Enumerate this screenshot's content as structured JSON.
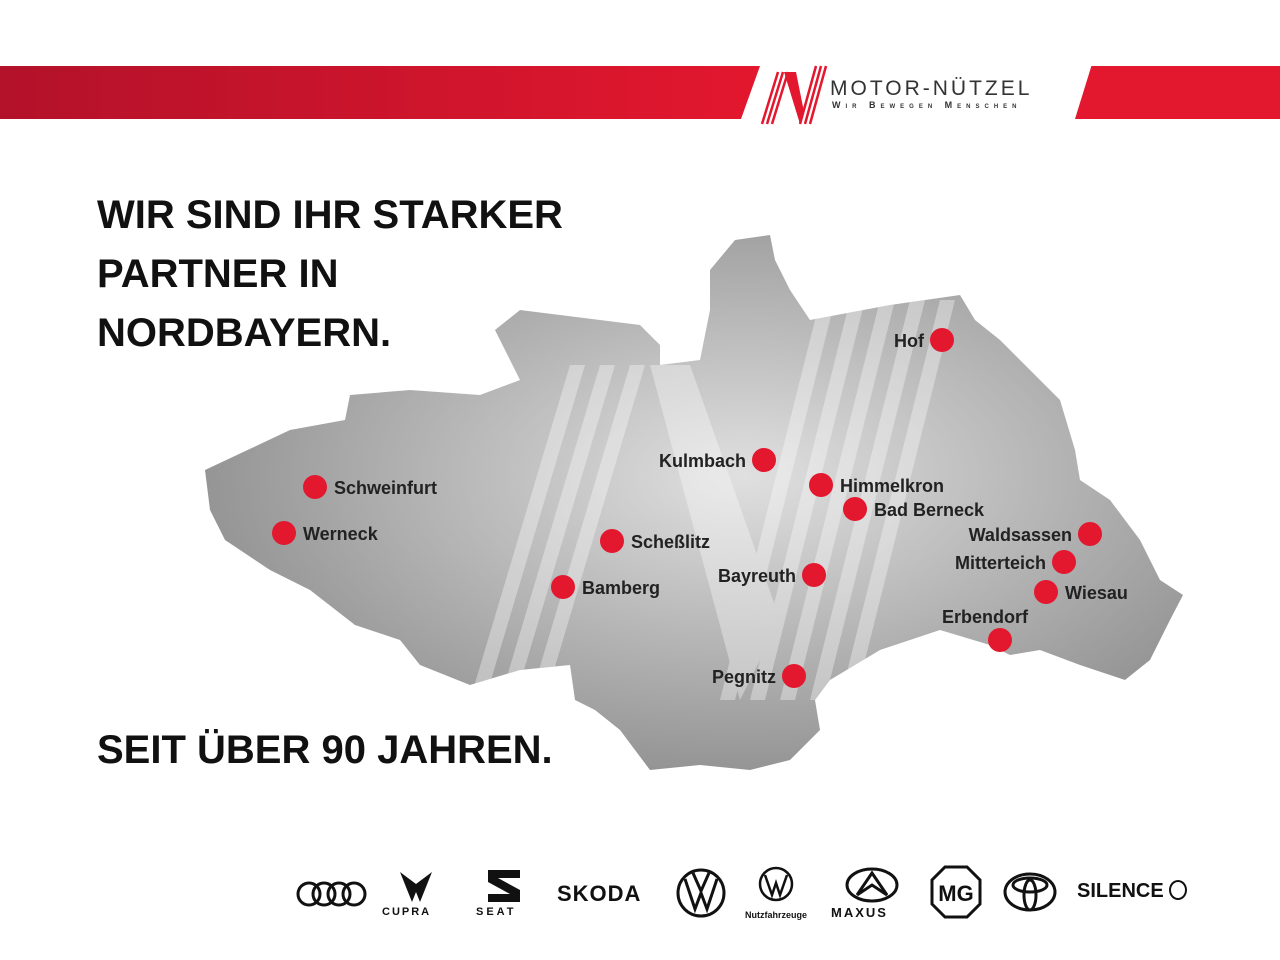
{
  "header": {
    "brand_name": "MOTOR-NÜTZEL",
    "tagline": "Wir Bewegen Menschen",
    "accent": "#e3172e"
  },
  "headline": {
    "line1": "WIR SIND IHR STARKER",
    "line2": "PARTNER IN",
    "line3": "NORDBAYERN.",
    "sub": "SEIT ÜBER 90 JAHREN."
  },
  "map": {
    "region_color": "#9a9a9a",
    "dot_color": "#e3172e",
    "locations": [
      {
        "name": "Hof"
      },
      {
        "name": "Kulmbach"
      },
      {
        "name": "Himmelkron"
      },
      {
        "name": "Bad Berneck"
      },
      {
        "name": "Schweinfurt"
      },
      {
        "name": "Werneck"
      },
      {
        "name": "Scheßlitz"
      },
      {
        "name": "Bamberg"
      },
      {
        "name": "Bayreuth"
      },
      {
        "name": "Waldsassen"
      },
      {
        "name": "Mitterteich"
      },
      {
        "name": "Wiesau"
      },
      {
        "name": "Erbendorf"
      },
      {
        "name": "Pegnitz"
      }
    ]
  },
  "brands": {
    "audi": "Audi",
    "cupra": "CUPRA",
    "seat": "SEAT",
    "skoda": "SKODA",
    "vw": "VW",
    "vw_nfz": "Nutzfahrzeuge",
    "maxus": "MAXUS",
    "mg": "MG",
    "toyota": "Toyota",
    "silence": "SILENCE"
  }
}
